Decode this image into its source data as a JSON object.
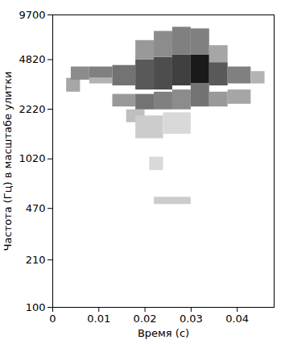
{
  "chart_data": {
    "type": "heatmap",
    "x_label": "Время (с)",
    "y_label": "Частота (Гц) в масштабе улитки",
    "xlim": [
      0,
      0.048
    ],
    "ylim": [
      100,
      9700
    ],
    "xticks": [
      0,
      0.01,
      0.02,
      0.03,
      0.04
    ],
    "yticks": [
      100,
      210,
      470,
      1020,
      2220,
      4820,
      9700
    ],
    "log": "y",
    "zlim": [
      0,
      1
    ],
    "cells": [
      {
        "t0": 0.003,
        "t1": 0.006,
        "f0": 2900,
        "f1": 3600,
        "v": 0.35
      },
      {
        "t0": 0.004,
        "t1": 0.008,
        "f0": 3500,
        "f1": 4300,
        "v": 0.45
      },
      {
        "t0": 0.008,
        "t1": 0.013,
        "f0": 3600,
        "f1": 4300,
        "v": 0.5
      },
      {
        "t0": 0.008,
        "t1": 0.013,
        "f0": 3300,
        "f1": 3600,
        "v": 0.3
      },
      {
        "t0": 0.013,
        "t1": 0.018,
        "f0": 3200,
        "f1": 4400,
        "v": 0.55
      },
      {
        "t0": 0.013,
        "t1": 0.018,
        "f0": 2300,
        "f1": 2800,
        "v": 0.4
      },
      {
        "t0": 0.016,
        "t1": 0.02,
        "f0": 1800,
        "f1": 2200,
        "v": 0.25
      },
      {
        "t0": 0.018,
        "t1": 0.022,
        "f0": 3000,
        "f1": 4800,
        "v": 0.65
      },
      {
        "t0": 0.018,
        "t1": 0.022,
        "f0": 4800,
        "f1": 6500,
        "v": 0.4
      },
      {
        "t0": 0.018,
        "t1": 0.022,
        "f0": 2200,
        "f1": 2800,
        "v": 0.55
      },
      {
        "t0": 0.022,
        "t1": 0.026,
        "f0": 3000,
        "f1": 5000,
        "v": 0.7
      },
      {
        "t0": 0.022,
        "t1": 0.026,
        "f0": 5000,
        "f1": 7500,
        "v": 0.45
      },
      {
        "t0": 0.022,
        "t1": 0.026,
        "f0": 2200,
        "f1": 2900,
        "v": 0.5
      },
      {
        "t0": 0.026,
        "t1": 0.03,
        "f0": 3200,
        "f1": 5200,
        "v": 0.75
      },
      {
        "t0": 0.026,
        "t1": 0.03,
        "f0": 5200,
        "f1": 8000,
        "v": 0.5
      },
      {
        "t0": 0.026,
        "t1": 0.03,
        "f0": 2200,
        "f1": 3000,
        "v": 0.45
      },
      {
        "t0": 0.03,
        "t1": 0.034,
        "f0": 3300,
        "f1": 5200,
        "v": 0.9
      },
      {
        "t0": 0.03,
        "t1": 0.034,
        "f0": 5200,
        "f1": 7800,
        "v": 0.5
      },
      {
        "t0": 0.03,
        "t1": 0.034,
        "f0": 2300,
        "f1": 3300,
        "v": 0.55
      },
      {
        "t0": 0.034,
        "t1": 0.038,
        "f0": 3200,
        "f1": 4600,
        "v": 0.65
      },
      {
        "t0": 0.034,
        "t1": 0.038,
        "f0": 4600,
        "f1": 6000,
        "v": 0.35
      },
      {
        "t0": 0.034,
        "t1": 0.038,
        "f0": 2300,
        "f1": 2900,
        "v": 0.4
      },
      {
        "t0": 0.038,
        "t1": 0.043,
        "f0": 3300,
        "f1": 4300,
        "v": 0.5
      },
      {
        "t0": 0.038,
        "t1": 0.043,
        "f0": 2400,
        "f1": 3000,
        "v": 0.35
      },
      {
        "t0": 0.043,
        "t1": 0.046,
        "f0": 3300,
        "f1": 4000,
        "v": 0.3
      },
      {
        "t0": 0.018,
        "t1": 0.024,
        "f0": 1400,
        "f1": 2000,
        "v": 0.2
      },
      {
        "t0": 0.024,
        "t1": 0.03,
        "f0": 1500,
        "f1": 2100,
        "v": 0.15
      },
      {
        "t0": 0.021,
        "t1": 0.024,
        "f0": 850,
        "f1": 1050,
        "v": 0.15
      },
      {
        "t0": 0.022,
        "t1": 0.03,
        "f0": 500,
        "f1": 560,
        "v": 0.2
      }
    ]
  }
}
